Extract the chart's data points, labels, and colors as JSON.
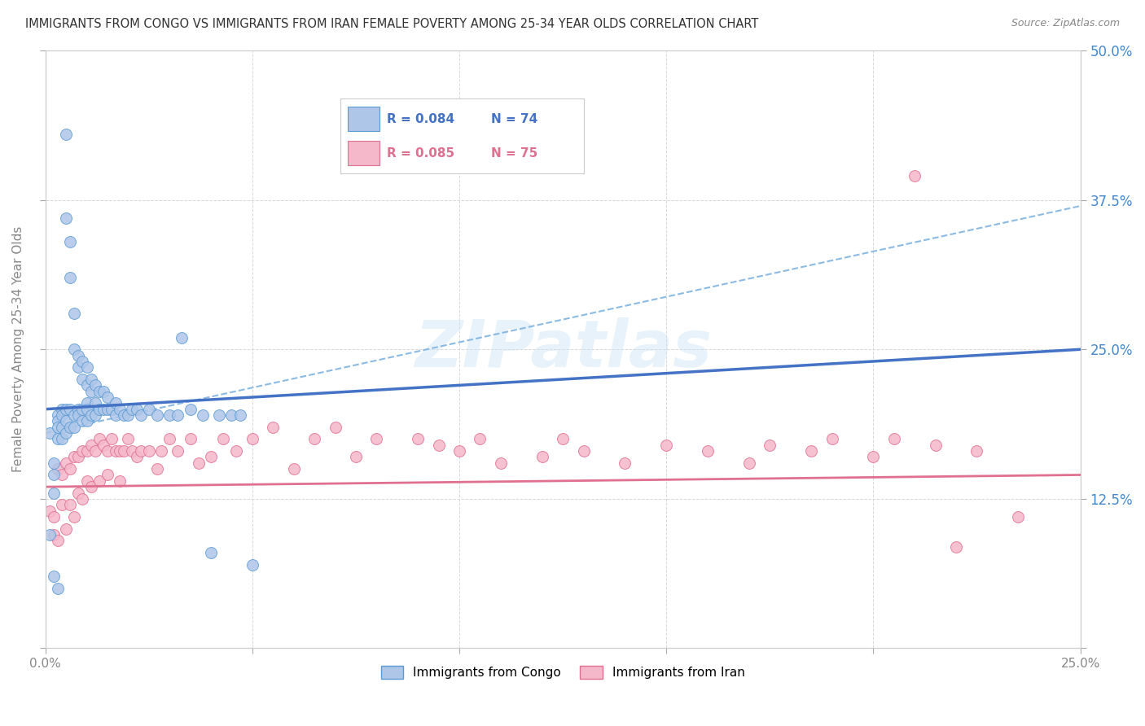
{
  "title": "IMMIGRANTS FROM CONGO VS IMMIGRANTS FROM IRAN FEMALE POVERTY AMONG 25-34 YEAR OLDS CORRELATION CHART",
  "source": "Source: ZipAtlas.com",
  "ylabel": "Female Poverty Among 25-34 Year Olds",
  "xlim": [
    0.0,
    0.25
  ],
  "ylim": [
    0.0,
    0.5
  ],
  "background_color": "#ffffff",
  "grid_color": "#d8d8d8",
  "watermark": "ZIPatlas",
  "congo_color": "#aec6e8",
  "iran_color": "#f5b8cb",
  "congo_edge_color": "#5b9bd5",
  "iran_edge_color": "#e07090",
  "legend_text_color_congo": "#4472c4",
  "legend_text_color_iran": "#e07090",
  "legend_R_congo": "0.084",
  "legend_N_congo": "74",
  "legend_R_iran": "0.085",
  "legend_N_iran": "75",
  "trendline_congo_color": "#4472c4",
  "trendline_iran_color": "#e07090",
  "trendline_dashed_color": "#7fb3e0",
  "congo_x": [
    0.001,
    0.001,
    0.002,
    0.002,
    0.002,
    0.002,
    0.003,
    0.003,
    0.003,
    0.003,
    0.003,
    0.004,
    0.004,
    0.004,
    0.004,
    0.005,
    0.005,
    0.005,
    0.005,
    0.005,
    0.006,
    0.006,
    0.006,
    0.006,
    0.007,
    0.007,
    0.007,
    0.007,
    0.008,
    0.008,
    0.008,
    0.008,
    0.009,
    0.009,
    0.009,
    0.009,
    0.01,
    0.01,
    0.01,
    0.01,
    0.01,
    0.011,
    0.011,
    0.011,
    0.012,
    0.012,
    0.012,
    0.013,
    0.013,
    0.014,
    0.014,
    0.015,
    0.015,
    0.016,
    0.017,
    0.017,
    0.018,
    0.019,
    0.02,
    0.021,
    0.022,
    0.023,
    0.025,
    0.027,
    0.03,
    0.032,
    0.033,
    0.035,
    0.038,
    0.04,
    0.042,
    0.045,
    0.047,
    0.05
  ],
  "congo_y": [
    0.18,
    0.095,
    0.155,
    0.145,
    0.13,
    0.06,
    0.195,
    0.19,
    0.185,
    0.175,
    0.05,
    0.2,
    0.195,
    0.185,
    0.175,
    0.43,
    0.36,
    0.2,
    0.19,
    0.18,
    0.34,
    0.31,
    0.2,
    0.185,
    0.28,
    0.25,
    0.195,
    0.185,
    0.245,
    0.235,
    0.2,
    0.195,
    0.24,
    0.225,
    0.2,
    0.19,
    0.235,
    0.22,
    0.205,
    0.2,
    0.19,
    0.225,
    0.215,
    0.195,
    0.22,
    0.205,
    0.195,
    0.215,
    0.2,
    0.215,
    0.2,
    0.21,
    0.2,
    0.2,
    0.205,
    0.195,
    0.2,
    0.195,
    0.195,
    0.2,
    0.2,
    0.195,
    0.2,
    0.195,
    0.195,
    0.195,
    0.26,
    0.2,
    0.195,
    0.08,
    0.195,
    0.195,
    0.195,
    0.07
  ],
  "iran_x": [
    0.001,
    0.002,
    0.002,
    0.003,
    0.003,
    0.004,
    0.004,
    0.005,
    0.005,
    0.006,
    0.006,
    0.007,
    0.007,
    0.008,
    0.008,
    0.009,
    0.009,
    0.01,
    0.01,
    0.011,
    0.011,
    0.012,
    0.013,
    0.013,
    0.014,
    0.015,
    0.015,
    0.016,
    0.017,
    0.018,
    0.018,
    0.019,
    0.02,
    0.021,
    0.022,
    0.023,
    0.025,
    0.027,
    0.028,
    0.03,
    0.032,
    0.035,
    0.037,
    0.04,
    0.043,
    0.046,
    0.05,
    0.055,
    0.06,
    0.065,
    0.07,
    0.075,
    0.08,
    0.09,
    0.095,
    0.1,
    0.105,
    0.11,
    0.12,
    0.125,
    0.13,
    0.14,
    0.15,
    0.16,
    0.17,
    0.175,
    0.185,
    0.19,
    0.2,
    0.205,
    0.21,
    0.215,
    0.22,
    0.225,
    0.235
  ],
  "iran_y": [
    0.115,
    0.11,
    0.095,
    0.15,
    0.09,
    0.145,
    0.12,
    0.155,
    0.1,
    0.15,
    0.12,
    0.16,
    0.11,
    0.16,
    0.13,
    0.165,
    0.125,
    0.165,
    0.14,
    0.17,
    0.135,
    0.165,
    0.175,
    0.14,
    0.17,
    0.165,
    0.145,
    0.175,
    0.165,
    0.165,
    0.14,
    0.165,
    0.175,
    0.165,
    0.16,
    0.165,
    0.165,
    0.15,
    0.165,
    0.175,
    0.165,
    0.175,
    0.155,
    0.16,
    0.175,
    0.165,
    0.175,
    0.185,
    0.15,
    0.175,
    0.185,
    0.16,
    0.175,
    0.175,
    0.17,
    0.165,
    0.175,
    0.155,
    0.16,
    0.175,
    0.165,
    0.155,
    0.17,
    0.165,
    0.155,
    0.17,
    0.165,
    0.175,
    0.16,
    0.175,
    0.395,
    0.17,
    0.085,
    0.165,
    0.11
  ]
}
